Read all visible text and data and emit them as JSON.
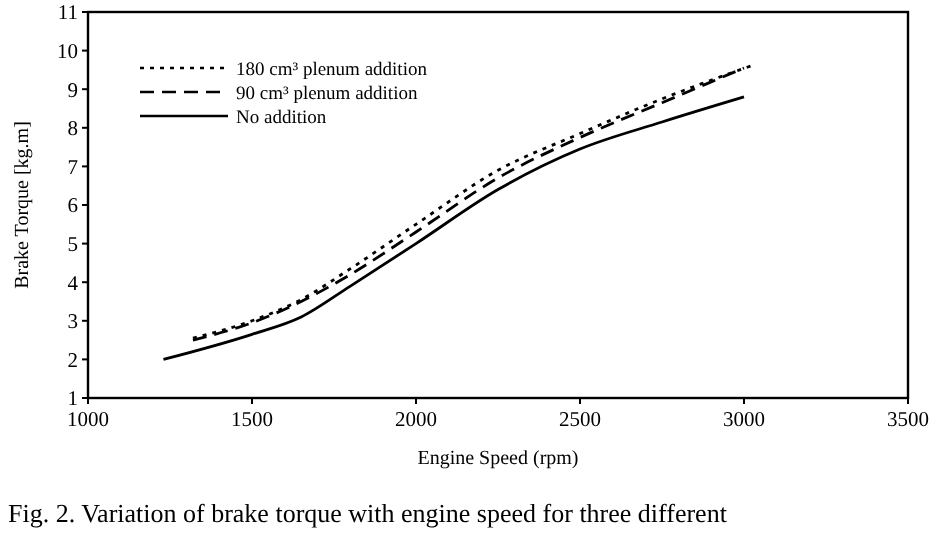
{
  "chart_data": {
    "type": "line",
    "xlabel": "Engine Speed (rpm)",
    "ylabel": "Brake Torque [kg.m]",
    "xlim": [
      1000,
      3500
    ],
    "xticks": [
      1000,
      1500,
      2000,
      2500,
      3000,
      3500
    ],
    "ylim": [
      1,
      11
    ],
    "yticks": [
      1,
      2,
      3,
      4,
      5,
      6,
      7,
      8,
      9,
      10,
      11
    ],
    "grid": false,
    "legend": "top left",
    "annotations": [
      "Fig. 2. Variation of brake torque with engine speed for three different"
    ],
    "series": [
      {
        "name": "180 cm³ plenum addition",
        "color": "#000000",
        "line_style": "dotted",
        "x": [
          1320,
          1500,
          1650,
          1800,
          2000,
          2250,
          2500,
          2750,
          3020
        ],
        "values": [
          2.55,
          3.0,
          3.55,
          4.35,
          5.5,
          6.9,
          7.85,
          8.75,
          9.6
        ]
      },
      {
        "name": "90 cm³ plenum addition",
        "color": "#000000",
        "line_style": "dashed",
        "x": [
          1320,
          1500,
          1650,
          1800,
          2000,
          2250,
          2500,
          2750,
          3000
        ],
        "values": [
          2.5,
          2.95,
          3.5,
          4.2,
          5.3,
          6.7,
          7.75,
          8.65,
          9.55
        ]
      },
      {
        "name": "No addition",
        "color": "#000000",
        "line_style": "solid",
        "x": [
          1230,
          1500,
          1650,
          1800,
          2000,
          2250,
          2500,
          2750,
          3000
        ],
        "values": [
          2.0,
          2.65,
          3.1,
          3.9,
          5.0,
          6.4,
          7.45,
          8.15,
          8.8
        ]
      }
    ]
  }
}
